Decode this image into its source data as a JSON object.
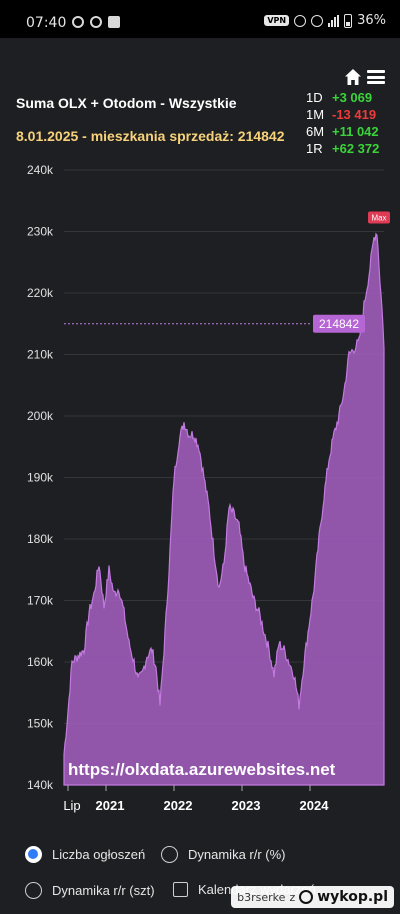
{
  "statusbar": {
    "time": "07:40",
    "vpn": "VPN",
    "battery": "36%"
  },
  "header": {
    "title": "Suma OLX + Otodom - Wszystkie",
    "subtitle": "8.01.2025 - mieszkania sprzedaż: 214842"
  },
  "changes": [
    {
      "label": "1D",
      "value": "+3 069",
      "sign": "pos"
    },
    {
      "label": "1M",
      "value": "-13 419",
      "sign": "neg"
    },
    {
      "label": "6M",
      "value": "+11 042",
      "sign": "pos"
    },
    {
      "label": "1R",
      "value": "+62 372",
      "sign": "pos"
    }
  ],
  "chart_data": {
    "type": "area",
    "y_ticks": [
      "240k",
      "230k",
      "220k",
      "210k",
      "200k",
      "190k",
      "180k",
      "170k",
      "160k",
      "150k",
      "140k"
    ],
    "ylim": [
      140000,
      240000
    ],
    "x_ticks": [
      "Lip",
      "2021",
      "2022",
      "2023",
      "2024"
    ],
    "current_label": "214842",
    "max_label": "Max",
    "watermark": "https://olxdata.azurewebsites.net",
    "series_color": "#a65fc2",
    "points": [
      [
        0,
        145000
      ],
      [
        4,
        152000
      ],
      [
        8,
        160000
      ],
      [
        14,
        161000
      ],
      [
        20,
        162000
      ],
      [
        25,
        168000
      ],
      [
        30,
        171000
      ],
      [
        35,
        176000
      ],
      [
        40,
        169000
      ],
      [
        45,
        175000
      ],
      [
        50,
        171000
      ],
      [
        55,
        172000
      ],
      [
        60,
        168000
      ],
      [
        65,
        163000
      ],
      [
        70,
        160000
      ],
      [
        74,
        157000
      ],
      [
        78,
        158000
      ],
      [
        83,
        161000
      ],
      [
        88,
        162000
      ],
      [
        92,
        159000
      ],
      [
        96,
        153000
      ],
      [
        100,
        162000
      ],
      [
        105,
        175000
      ],
      [
        110,
        190000
      ],
      [
        115,
        196000
      ],
      [
        120,
        199000
      ],
      [
        125,
        197000
      ],
      [
        130,
        197000
      ],
      [
        135,
        195000
      ],
      [
        140,
        190000
      ],
      [
        145,
        185000
      ],
      [
        150,
        178000
      ],
      [
        155,
        172000
      ],
      [
        160,
        176000
      ],
      [
        165,
        185000
      ],
      [
        170,
        184000
      ],
      [
        175,
        182000
      ],
      [
        180,
        176000
      ],
      [
        185,
        173000
      ],
      [
        190,
        170000
      ],
      [
        195,
        168000
      ],
      [
        200,
        165000
      ],
      [
        205,
        162000
      ],
      [
        210,
        158000
      ],
      [
        215,
        163000
      ],
      [
        220,
        162000
      ],
      [
        225,
        160000
      ],
      [
        230,
        158000
      ],
      [
        235,
        153000
      ],
      [
        240,
        160000
      ],
      [
        245,
        166000
      ],
      [
        250,
        172000
      ],
      [
        255,
        180000
      ],
      [
        260,
        187000
      ],
      [
        265,
        193000
      ],
      [
        270,
        197000
      ],
      [
        275,
        200000
      ],
      [
        280,
        204000
      ],
      [
        285,
        210000
      ],
      [
        290,
        211000
      ],
      [
        295,
        212000
      ],
      [
        300,
        218000
      ],
      [
        305,
        223000
      ],
      [
        310,
        229000
      ],
      [
        313,
        230000
      ],
      [
        316,
        222000
      ],
      [
        319,
        215000
      ],
      [
        320,
        211000
      ]
    ]
  },
  "options": {
    "opt1": "Liczba ogłoszeń",
    "opt2": "Dynamika r/r (%)",
    "opt3": "Dynamika r/r (szt)",
    "opt4": "Kalendarz wydarzeń"
  },
  "footer": {
    "user": "b3rserke",
    "word": "z",
    "site": "wykop.pl"
  }
}
